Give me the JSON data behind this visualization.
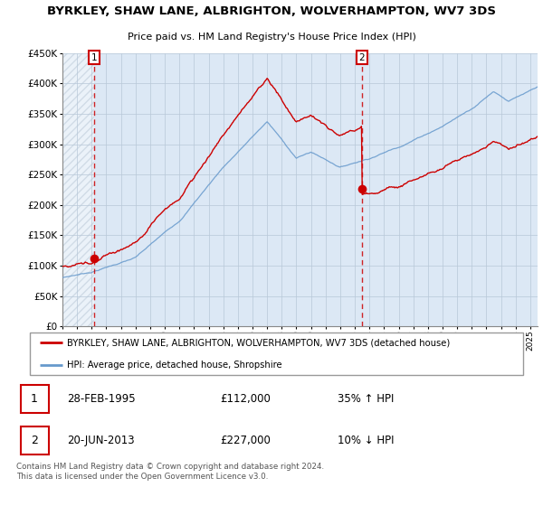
{
  "title": "BYRKLEY, SHAW LANE, ALBRIGHTON, WOLVERHAMPTON, WV7 3DS",
  "subtitle": "Price paid vs. HM Land Registry's House Price Index (HPI)",
  "legend_line1": "BYRKLEY, SHAW LANE, ALBRIGHTON, WOLVERHAMPTON, WV7 3DS (detached house)",
  "legend_line2": "HPI: Average price, detached house, Shropshire",
  "table_row1": [
    "1",
    "28-FEB-1995",
    "£112,000",
    "35% ↑ HPI"
  ],
  "table_row2": [
    "2",
    "20-JUN-2013",
    "£227,000",
    "10% ↓ HPI"
  ],
  "footer": "Contains HM Land Registry data © Crown copyright and database right 2024.\nThis data is licensed under the Open Government Licence v3.0.",
  "price_line_color": "#cc0000",
  "hpi_line_color": "#6699cc",
  "marker_color": "#cc0000",
  "dashed_line_color": "#cc0000",
  "marker1_x": 1995.15,
  "marker1_y": 112000,
  "marker2_x": 2013.47,
  "marker2_y": 227000,
  "ylim": [
    0,
    450000
  ],
  "yticks": [
    0,
    50000,
    100000,
    150000,
    200000,
    250000,
    300000,
    350000,
    400000,
    450000
  ],
  "xlim_start": 1993.0,
  "xlim_end": 2025.5,
  "plot_bg_color": "#dce8f5",
  "hatch_color": "#b0c0d0",
  "grid_color": "#b8c8d8"
}
